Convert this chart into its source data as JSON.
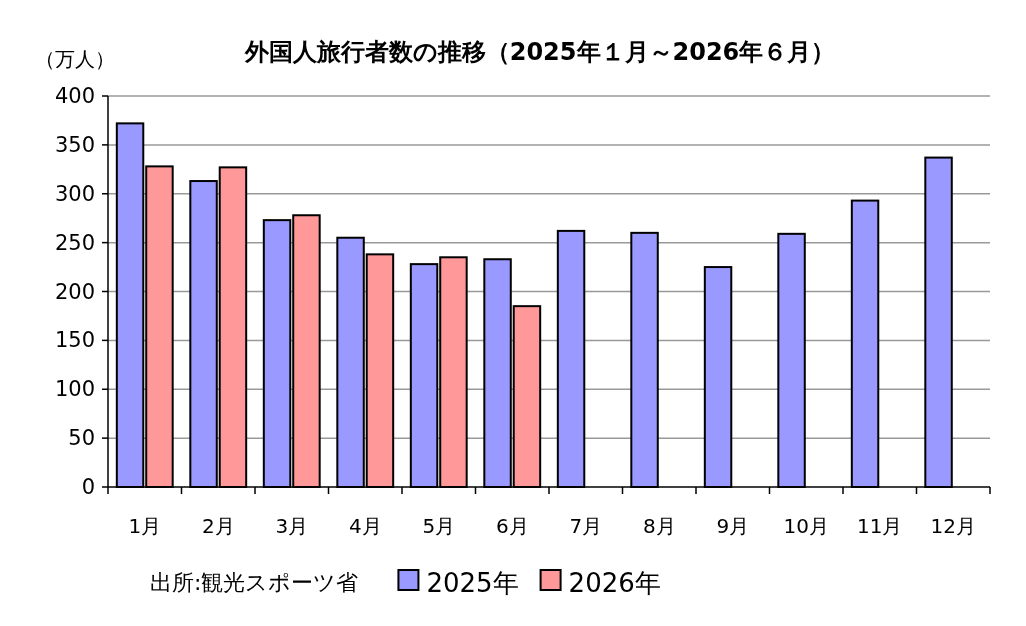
{
  "chart_data": {
    "type": "bar",
    "title": "外国人旅行者数の推移（2025年１月～2026年６月）",
    "ylabel": "（万人）",
    "categories": [
      "1月",
      "2月",
      "3月",
      "4月",
      "5月",
      "6月",
      "7月",
      "8月",
      "9月",
      "10月",
      "11月",
      "12月"
    ],
    "series": [
      {
        "name": "2025年",
        "color": "#9999ff",
        "values": [
          372,
          313,
          273,
          255,
          228,
          233,
          262,
          260,
          225,
          259,
          293,
          337
        ]
      },
      {
        "name": "2026年",
        "color": "#ff9999",
        "values": [
          328,
          327,
          278,
          238,
          235,
          185,
          null,
          null,
          null,
          null,
          null,
          null
        ]
      }
    ],
    "ylim": [
      0,
      400
    ],
    "yticks": [
      0,
      50,
      100,
      150,
      200,
      250,
      300,
      350,
      400
    ],
    "grid": "y",
    "legend": "bottom",
    "annotations": [
      "出所:観光スポーツ省"
    ]
  }
}
